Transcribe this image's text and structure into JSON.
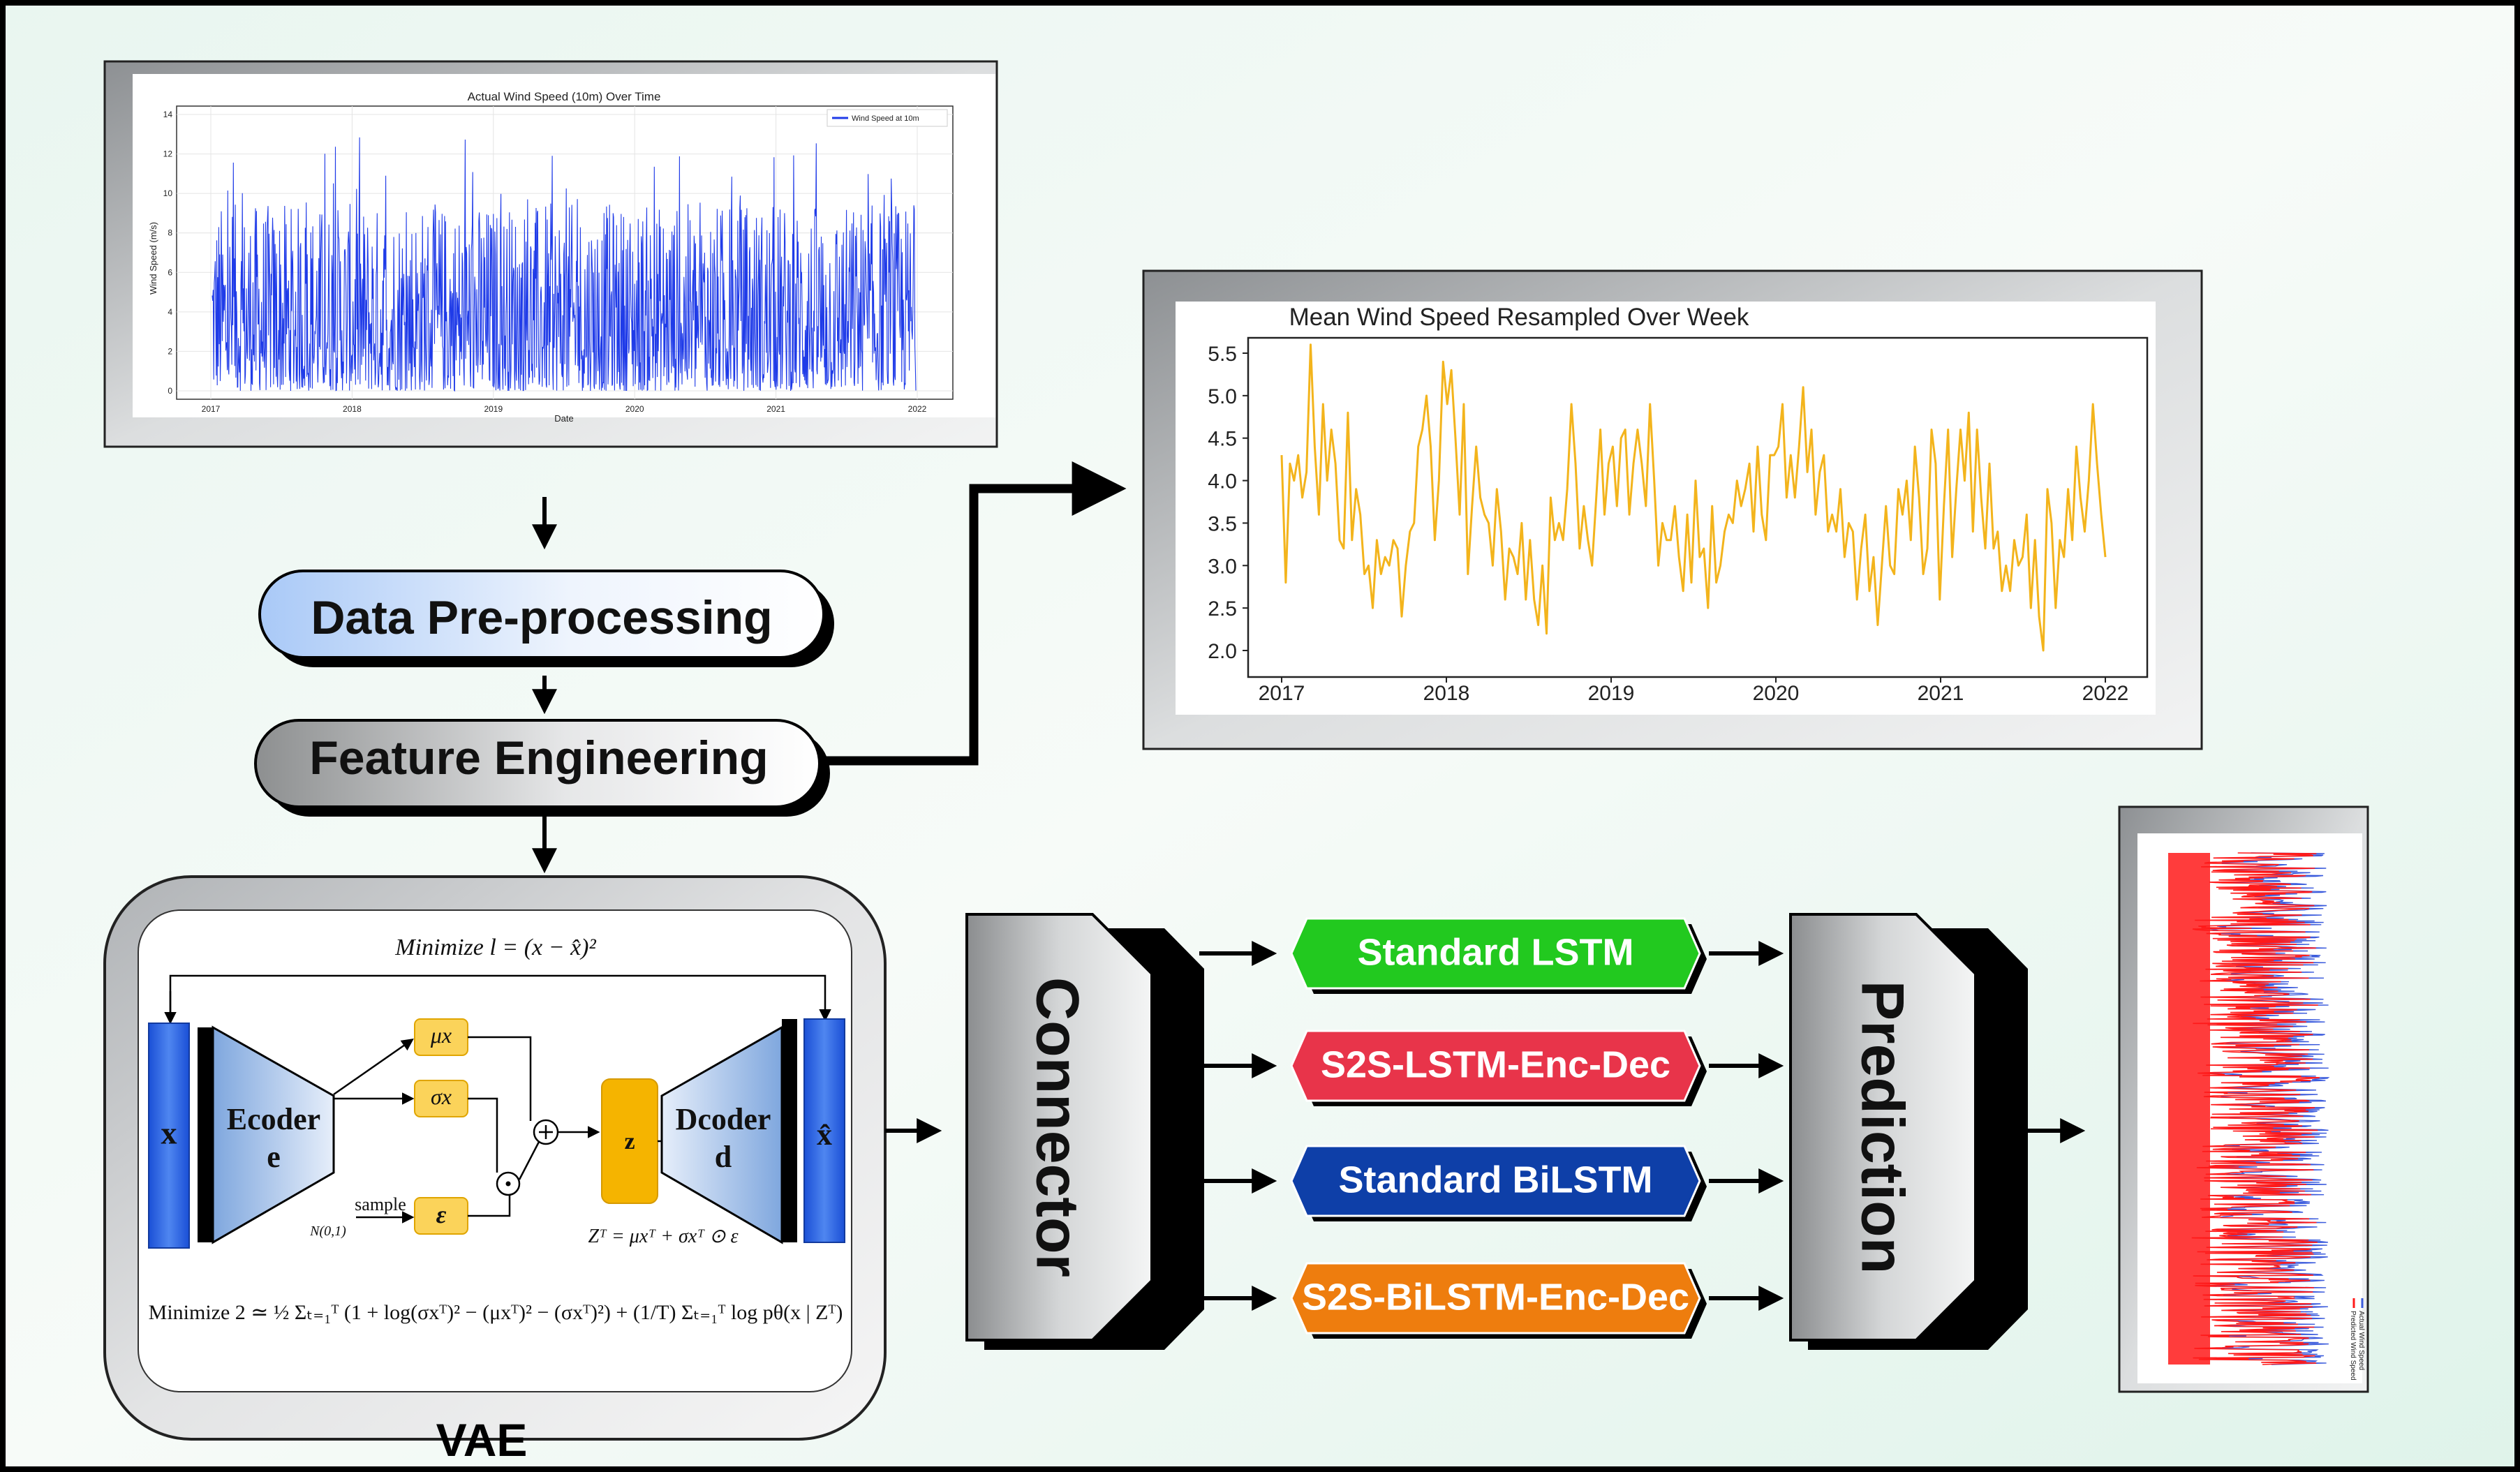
{
  "diagram": {
    "steps": {
      "preprocessing": "Data Pre-processing",
      "feature_engineering": "Feature Engineering",
      "connector": "Connector",
      "prediction": "Prediction",
      "vae": "VAE"
    },
    "models": [
      {
        "label": "Standard LSTM",
        "color": "#22c91f"
      },
      {
        "label": "S2S-LSTM-Enc-Dec",
        "color": "#e8344a"
      },
      {
        "label": "Standard BiLSTM",
        "color": "#0e3fa8"
      },
      {
        "label": "S2S-BiLSTM-Enc-Dec",
        "color": "#ee7d0e"
      }
    ],
    "vae_detail": {
      "minimize1": "Minimize l = (x − x̂)²",
      "input": "x",
      "encoder": [
        "Ecoder",
        "e"
      ],
      "mu": "μx",
      "sigma": "σx",
      "epsilon": "ε",
      "sample": "sample",
      "normal": "N(0,1)",
      "z": "z",
      "decoder": [
        "Dcoder",
        "d"
      ],
      "output": "x̂",
      "z_formula": "Zᵀ = μxᵀ + σxᵀ ⊙ ε",
      "minimize2": "Minimize 2 ≃ ½ Σₜ₌₁ᵀ (1 + log(σxᵀ)² − (μxᵀ)² − (σxᵀ)²) + (1/T) Σₜ₌₁ᵀ log pθ(x | Zᵀ)"
    }
  },
  "chart_data": [
    {
      "type": "line",
      "title": "Actual Wind Speed (10m) Over Time",
      "xlabel": "Date",
      "ylabel": "Wind Speed (m/s)",
      "x_ticks": [
        "2017",
        "2018",
        "2019",
        "2020",
        "2021",
        "2022"
      ],
      "y_ticks": [
        0,
        2,
        4,
        6,
        8,
        10,
        12,
        14
      ],
      "ylim": [
        0,
        14
      ],
      "series": [
        {
          "name": "Wind Speed at 10m",
          "color": "#1f3be8"
        }
      ],
      "legend": "top-right",
      "grid": true
    },
    {
      "type": "line",
      "title": "Mean Wind Speed Resampled Over Week",
      "x_ticks": [
        "2017",
        "2018",
        "2019",
        "2020",
        "2021",
        "2022"
      ],
      "y_ticks": [
        "2.0",
        "2.5",
        "3.0",
        "3.5",
        "4.0",
        "4.5",
        "5.0",
        "5.5"
      ],
      "ylim": [
        1.9,
        5.7
      ],
      "xlim": [
        2017,
        2022
      ],
      "series": [
        {
          "color": "#f3b41c",
          "values": [
            4.3,
            2.8,
            4.2,
            4.0,
            4.3,
            3.8,
            4.1,
            5.6,
            4.4,
            3.6,
            4.9,
            4.0,
            4.6,
            4.2,
            3.3,
            3.2,
            4.8,
            3.3,
            3.9,
            3.6,
            2.9,
            3.0,
            2.5,
            3.3,
            2.9,
            3.1,
            3.0,
            3.3,
            3.2,
            2.4,
            3.0,
            3.4,
            3.5,
            4.4,
            4.6,
            5.0,
            4.4,
            3.3,
            4.0,
            5.4,
            4.9,
            5.3,
            4.5,
            3.6,
            4.9,
            2.9,
            3.7,
            4.4,
            3.8,
            3.6,
            3.5,
            3.0,
            3.9,
            3.4,
            2.6,
            3.2,
            3.1,
            2.9,
            3.5,
            2.6,
            3.3,
            2.6,
            2.3,
            3.0,
            2.2,
            3.8,
            3.3,
            3.5,
            3.3,
            3.9,
            4.9,
            4.2,
            3.2,
            3.7,
            3.3,
            3.0,
            3.8,
            4.6,
            3.6,
            4.2,
            4.4,
            3.7,
            4.5,
            4.6,
            3.6,
            4.2,
            4.6,
            4.2,
            3.7,
            4.9,
            4.0,
            3.0,
            3.5,
            3.3,
            3.3,
            3.7,
            3.1,
            2.7,
            3.6,
            2.8,
            4.0,
            3.1,
            3.2,
            2.5,
            3.7,
            2.8,
            3.0,
            3.4,
            3.6,
            3.5,
            4.0,
            3.7,
            3.9,
            4.2,
            3.4,
            4.4,
            3.6,
            3.3,
            4.3,
            4.3,
            4.4,
            4.9,
            3.8,
            4.3,
            3.8,
            4.4,
            5.1,
            4.1,
            4.6,
            3.6,
            4.1,
            4.3,
            3.4,
            3.6,
            3.4,
            3.9,
            3.1,
            3.5,
            3.4,
            2.6,
            3.2,
            3.6,
            2.7,
            3.1,
            2.3,
            3.0,
            3.7,
            3.0,
            2.9,
            3.9,
            3.6,
            4.0,
            3.3,
            4.4,
            3.8,
            2.9,
            3.2,
            4.6,
            4.2,
            2.6,
            3.7,
            4.6,
            3.1,
            3.9,
            4.6,
            4.0,
            4.8,
            3.4,
            4.6,
            3.8,
            3.2,
            4.2,
            3.2,
            3.4,
            2.7,
            3.0,
            2.7,
            3.3,
            3.0,
            3.1,
            3.6,
            2.5,
            3.3,
            2.4,
            2.0,
            3.9,
            3.5,
            2.5,
            3.3,
            3.1,
            3.9,
            3.3,
            4.4,
            3.8,
            3.4,
            4.0,
            4.9,
            4.2,
            3.6,
            3.1
          ]
        }
      ],
      "grid": false
    },
    {
      "type": "line",
      "series": [
        {
          "name": "Actual Wind Speed",
          "color": "#3b5bdc"
        },
        {
          "name": "Predicted Wind Speed",
          "color": "#ff1a1a"
        }
      ],
      "legend": "bottom-right",
      "orientation": "vertical"
    }
  ]
}
